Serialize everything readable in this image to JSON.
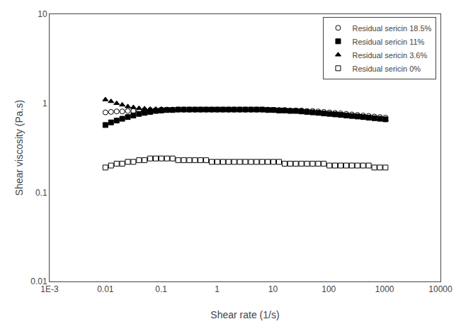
{
  "chart_data": {
    "type": "scatter",
    "xlabel": "Shear rate (1/s)",
    "ylabel": "Shear viscosity (Pa.s)",
    "log": true,
    "xlim": [
      0.001,
      10000
    ],
    "ylim": [
      0.01,
      10
    ],
    "xticks": [
      {
        "value": 0.001,
        "label": "1E-3"
      },
      0.01,
      0.1,
      1,
      10,
      100,
      1000,
      10000
    ],
    "yticks": [
      0.01,
      0.1,
      1,
      10
    ],
    "grid": false,
    "legend": "upper right",
    "x": [
      0.01,
      0.0126,
      0.0159,
      0.02,
      0.0252,
      0.0317,
      0.04,
      0.0503,
      0.0634,
      0.0798,
      0.1005,
      0.1266,
      0.1594,
      0.2008,
      0.253,
      0.3186,
      0.4013,
      0.5055,
      0.6369,
      0.8022,
      1.0108,
      1.2737,
      1.6049,
      2.022,
      2.5481,
      3.2103,
      4.044,
      5.095,
      6.419,
      8.088,
      10.19,
      12.84,
      16.17,
      20.37,
      25.67,
      32.34,
      40.74,
      51.33,
      64.67,
      81.5,
      102.7,
      129.4,
      163.1,
      205.5,
      258.9,
      326.3,
      411.3,
      518.3,
      653.2,
      823.2,
      1037.0
    ],
    "series": [
      {
        "name": "Residual sericin 18.5%",
        "color": "#000000",
        "marker": "circle-open",
        "values": [
          0.79,
          0.8,
          0.81,
          0.81,
          0.82,
          0.82,
          0.83,
          0.84,
          0.84,
          0.84,
          0.85,
          0.85,
          0.85,
          0.85,
          0.85,
          0.85,
          0.85,
          0.85,
          0.85,
          0.85,
          0.85,
          0.85,
          0.85,
          0.85,
          0.85,
          0.85,
          0.85,
          0.85,
          0.85,
          0.85,
          0.84,
          0.84,
          0.84,
          0.83,
          0.83,
          0.83,
          0.82,
          0.82,
          0.81,
          0.8,
          0.79,
          0.78,
          0.77,
          0.76,
          0.75,
          0.74,
          0.73,
          0.72,
          0.71,
          0.7,
          0.69
        ]
      },
      {
        "name": "Residual sericin 11%",
        "color": "#000000",
        "marker": "square",
        "values": [
          0.57,
          0.61,
          0.64,
          0.67,
          0.7,
          0.73,
          0.76,
          0.78,
          0.8,
          0.82,
          0.83,
          0.84,
          0.84,
          0.85,
          0.85,
          0.85,
          0.85,
          0.85,
          0.85,
          0.85,
          0.85,
          0.85,
          0.85,
          0.85,
          0.85,
          0.85,
          0.85,
          0.85,
          0.85,
          0.84,
          0.84,
          0.83,
          0.83,
          0.82,
          0.82,
          0.81,
          0.8,
          0.79,
          0.78,
          0.77,
          0.76,
          0.75,
          0.74,
          0.73,
          0.72,
          0.71,
          0.7,
          0.69,
          0.68,
          0.67,
          0.66
        ]
      },
      {
        "name": "Residual sericin 3.6%",
        "color": "#000000",
        "marker": "triangle-up",
        "values": [
          1.1,
          1.05,
          1.0,
          0.96,
          0.92,
          0.9,
          0.88,
          0.87,
          0.86,
          0.86,
          0.86,
          0.85,
          0.85,
          0.85,
          0.85,
          0.85,
          0.85,
          0.85,
          0.85,
          0.85,
          0.85,
          0.85,
          0.85,
          0.85,
          0.85,
          0.85,
          0.85,
          0.85,
          0.85,
          0.84,
          0.84,
          0.83,
          0.83,
          0.82,
          0.82,
          0.81,
          0.8,
          0.79,
          0.78,
          0.77,
          0.76,
          0.75,
          0.74,
          0.73,
          0.72,
          0.71,
          0.7,
          0.69,
          0.68,
          0.67,
          0.66
        ]
      },
      {
        "name": "Residual sericin 0%",
        "color": "#000000",
        "marker": "square-open",
        "values": [
          0.19,
          0.2,
          0.21,
          0.21,
          0.22,
          0.22,
          0.23,
          0.23,
          0.24,
          0.24,
          0.24,
          0.24,
          0.24,
          0.23,
          0.23,
          0.23,
          0.23,
          0.23,
          0.23,
          0.22,
          0.22,
          0.22,
          0.22,
          0.22,
          0.22,
          0.22,
          0.22,
          0.22,
          0.22,
          0.22,
          0.22,
          0.22,
          0.21,
          0.21,
          0.21,
          0.21,
          0.21,
          0.21,
          0.21,
          0.21,
          0.2,
          0.2,
          0.2,
          0.2,
          0.2,
          0.2,
          0.2,
          0.2,
          0.19,
          0.19,
          0.19
        ]
      }
    ]
  }
}
